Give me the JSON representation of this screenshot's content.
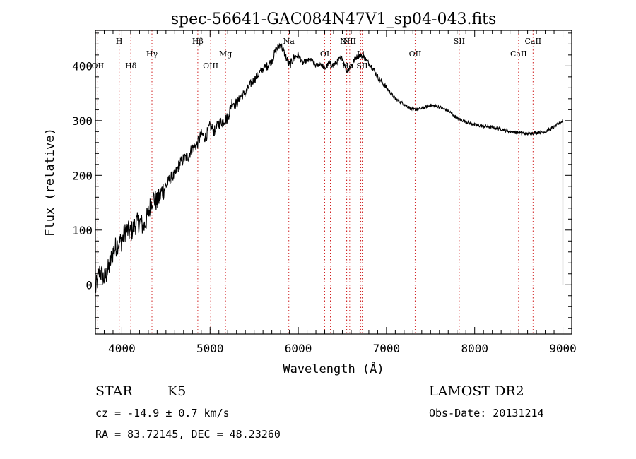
{
  "title": "spec-56641-GAC084N47V1_sp04-043.fits",
  "chart_data": {
    "type": "line",
    "xlabel": "Wavelength (Å)",
    "ylabel": "Flux (relative)",
    "xlim": [
      3700,
      9100
    ],
    "ylim": [
      -90,
      465
    ],
    "xticks": [
      4000,
      5000,
      6000,
      7000,
      8000,
      9000
    ],
    "yticks": [
      0,
      100,
      200,
      300,
      400
    ],
    "series": [
      {
        "x": [
          3700,
          3750,
          3800,
          3850,
          3900,
          3950,
          4000,
          4050,
          4100,
          4150,
          4200,
          4250,
          4300,
          4350,
          4400,
          4450,
          4500,
          4550,
          4600,
          4650,
          4700,
          4750,
          4800,
          4850,
          4900,
          4950,
          5000,
          5050,
          5100,
          5150,
          5200,
          5250,
          5300,
          5350,
          5400,
          5450,
          5500,
          5550,
          5600,
          5650,
          5700,
          5750,
          5800,
          5850,
          5900,
          5950,
          6000,
          6050,
          6100,
          6150,
          6200,
          6250,
          6300,
          6350,
          6400,
          6450,
          6500,
          6550,
          6600,
          6650,
          6700,
          6750,
          6800,
          6850,
          6900,
          6950,
          7000,
          7100,
          7200,
          7300,
          7400,
          7500,
          7600,
          7700,
          7800,
          7900,
          8000,
          8100,
          8200,
          8300,
          8400,
          8500,
          8600,
          8700,
          8800,
          8900,
          9000
        ],
        "values": [
          -10,
          25,
          10,
          30,
          60,
          75,
          80,
          100,
          95,
          110,
          115,
          105,
          130,
          160,
          150,
          170,
          180,
          195,
          200,
          220,
          230,
          235,
          250,
          255,
          275,
          270,
          290,
          280,
          295,
          300,
          305,
          335,
          330,
          345,
          350,
          365,
          375,
          385,
          395,
          400,
          410,
          430,
          440,
          420,
          400,
          415,
          420,
          405,
          410,
          410,
          400,
          405,
          395,
          405,
          400,
          410,
          415,
          390,
          400,
          415,
          420,
          415,
          405,
          395,
          380,
          370,
          360,
          340,
          330,
          320,
          322,
          328,
          325,
          318,
          305,
          298,
          292,
          290,
          288,
          285,
          280,
          278,
          276,
          278,
          280,
          288,
          300
        ]
      }
    ],
    "lines": [
      {
        "label": "OII",
        "x": 3727,
        "tier": "low"
      },
      {
        "label": "H",
        "x": 3970,
        "tier": "top"
      },
      {
        "label": "Hδ",
        "x": 4102,
        "tier": "low"
      },
      {
        "label": "Hγ",
        "x": 4341,
        "tier": "mid"
      },
      {
        "label": "Hβ",
        "x": 4861,
        "tier": "top"
      },
      {
        "label": "OIII",
        "x": 5007,
        "tier": "low"
      },
      {
        "label": "Mg",
        "x": 5175,
        "tier": "mid"
      },
      {
        "label": "Na",
        "x": 5893,
        "tier": "top"
      },
      {
        "label": "OI",
        "x": 6300,
        "tier": "mid"
      },
      {
        "label": "OI",
        "x": 6364,
        "tier": "low"
      },
      {
        "label": "NII",
        "x": 6548,
        "tier": "top"
      },
      {
        "label": "Hα",
        "x": 6563,
        "tier": "low"
      },
      {
        "label": "NII",
        "x": 6583,
        "tier": "top"
      },
      {
        "label": "Li",
        "x": 6708,
        "tier": "mid"
      },
      {
        "label": "SII",
        "x": 6724,
        "tier": "low"
      },
      {
        "label": "OII",
        "x": 7325,
        "tier": "mid"
      },
      {
        "label": "SII",
        "x": 7825,
        "tier": "top"
      },
      {
        "label": "CaII",
        "x": 8498,
        "tier": "mid"
      },
      {
        "label": "CaII",
        "x": 8662,
        "tier": "top"
      }
    ]
  },
  "footer": {
    "object": "STAR",
    "subclass": "K5",
    "survey": "LAMOST DR2",
    "cz": "cz = -14.9 ± 0.7 km/s",
    "obsdate": "Obs-Date: 20131214",
    "radec": "RA =  83.72145, DEC =  48.23260"
  }
}
